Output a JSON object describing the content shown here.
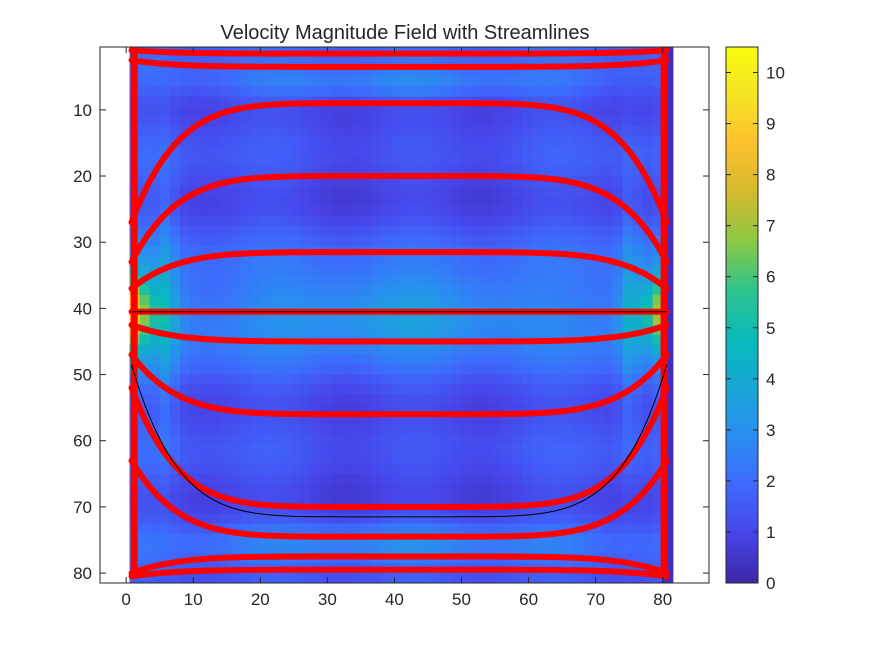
{
  "chart_data": {
    "type": "heatmap",
    "title": "Velocity Magnitude Field with Streamlines",
    "xlabel": "",
    "ylabel": "",
    "xlim": [
      -3.9,
      86.9
    ],
    "ylim": [
      0.5,
      81.5
    ],
    "y_reversed": true,
    "field_extent": {
      "x": [
        0.5,
        81.5
      ],
      "y": [
        0.5,
        81.5
      ]
    },
    "x_ticks": [
      0,
      10,
      20,
      30,
      40,
      50,
      60,
      70,
      80
    ],
    "y_ticks": [
      10,
      20,
      30,
      40,
      50,
      60,
      70,
      80
    ],
    "colorbar": {
      "min": 0,
      "max": 10.5,
      "ticks": [
        0,
        1,
        2,
        3,
        4,
        5,
        6,
        7,
        8,
        9,
        10
      ],
      "colormap": "parula",
      "colors": [
        "#3E26A8",
        "#4744E8",
        "#3F68FD",
        "#2B8BF2",
        "#1AA6D8",
        "#07B9BD",
        "#31C48A",
        "#8DC842",
        "#D4B92E",
        "#FEC02E",
        "#F5E426",
        "#F9FB0E"
      ]
    },
    "streamline_color": "#FF0000",
    "inner_line_color": "#000000",
    "streamlines_upper": [
      {
        "y_mid": 1.5,
        "y_edge": 1.0
      },
      {
        "y_mid": 3.5,
        "y_edge": 2.5
      },
      {
        "y_mid": 9.0,
        "y_edge": 27.0
      },
      {
        "y_mid": 20.0,
        "y_edge": 33.0
      },
      {
        "y_mid": 31.5,
        "y_edge": 37.0
      }
    ],
    "streamlines_lower": [
      {
        "y_mid": 45.0,
        "y_edge": 42.5
      },
      {
        "y_mid": 56.0,
        "y_edge": 47.0
      },
      {
        "y_mid": 70.0,
        "y_edge": 52.0
      },
      {
        "y_mid": 74.5,
        "y_edge": 63.0
      },
      {
        "y_mid": 77.5,
        "y_edge": 80.0
      },
      {
        "y_mid": 79.5,
        "y_edge": 80.5
      }
    ],
    "centerline_y": 40.5
  }
}
